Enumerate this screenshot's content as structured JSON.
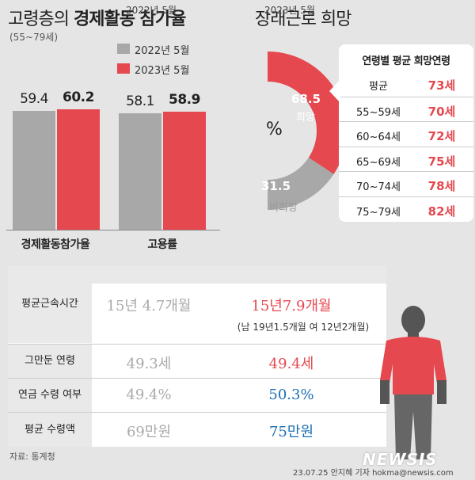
{
  "header": {
    "title_a": "고령층의 ",
    "title_b": "경제활동 참가율",
    "subtitle": "(55~79세)",
    "title_right": "장래근로 희망"
  },
  "chart_data": [
    {
      "type": "bar",
      "categories": [
        "경제활동참가율",
        "고용률"
      ],
      "series": [
        {
          "name": "2022년 5월",
          "values": [
            59.4,
            58.1
          ],
          "color": "#a8a8a8"
        },
        {
          "name": "2023년 5월",
          "values": [
            60.2,
            58.9
          ],
          "color": "#e5484e"
        }
      ],
      "legend_placement": "top-right"
    },
    {
      "type": "pie",
      "center_label": "%",
      "slices": [
        {
          "label": "희망",
          "value": 68.5,
          "color": "#e5484e"
        },
        {
          "label": "비희망",
          "value": 31.5,
          "color": "#a8a8a8"
        }
      ]
    }
  ],
  "wish_table": {
    "title": "연령별 평균 희망연령",
    "rows": [
      {
        "age": "평균",
        "value": "73세"
      },
      {
        "age": "55~59세",
        "value": "70세"
      },
      {
        "age": "60~64세",
        "value": "72세"
      },
      {
        "age": "65~69세",
        "value": "75세"
      },
      {
        "age": "70~74세",
        "value": "78세"
      },
      {
        "age": "75~79세",
        "value": "82세"
      }
    ]
  },
  "table": {
    "col_2022": "2022년 5월",
    "col_2023": "2023년 5월",
    "rows": [
      {
        "label": "평균근속시간",
        "v2022": "15년 4.7개월",
        "v2023": "15년7.9개월",
        "note": "(남 19년1.5개월  여 12년2개월)"
      },
      {
        "label": "그만둔 연령",
        "v2022": "49.3세",
        "v2023": "49.4세"
      },
      {
        "label": "연금 수령 여부",
        "v2022": "49.4%",
        "v2023": "50.3%"
      },
      {
        "label": "평균 수령액",
        "v2022": "69만원",
        "v2023": "75만원"
      }
    ],
    "colors": {
      "red": "#e5484e",
      "blue": "#1a6fb5"
    }
  },
  "footer": {
    "source": "자료: 통계청",
    "credit": "23.07.25 안지혜 기자 hokma@newsis.com",
    "logo": "NEWSIS"
  }
}
